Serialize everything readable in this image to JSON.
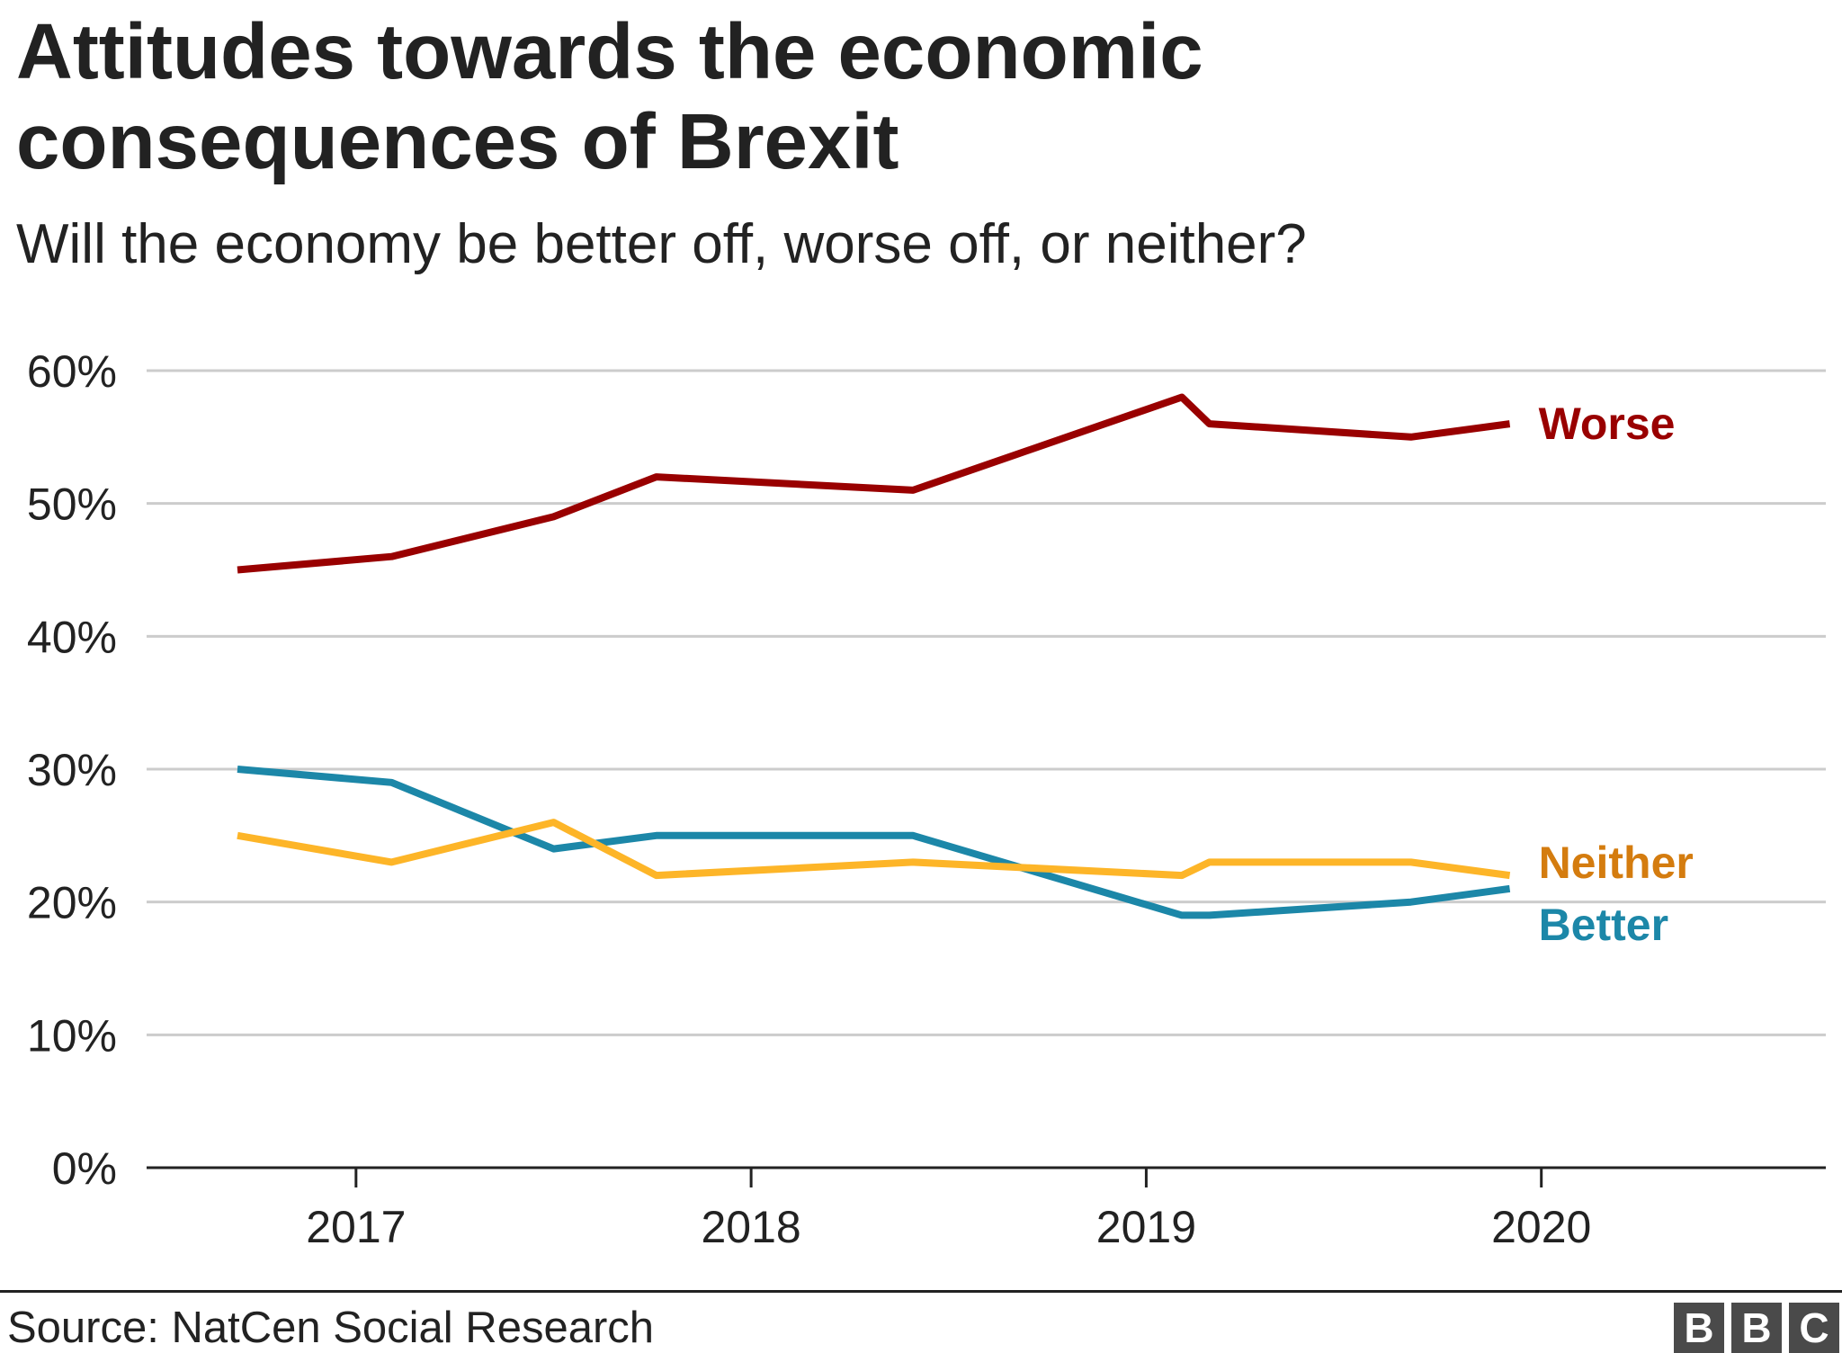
{
  "title": "Attitudes towards the economic consequences of Brexit",
  "subtitle": "Will the economy be better off, worse off, or neither?",
  "source": "Source: NatCen Social Research",
  "logo": {
    "letters": [
      "B",
      "B",
      "C"
    ],
    "color": "#4a4a4a"
  },
  "chart_data": {
    "type": "line",
    "title": "Attitudes towards the economic consequences of Brexit",
    "subtitle": "Will the economy be better off, worse off, or neither?",
    "xlabel": "",
    "ylabel": "",
    "xlim": [
      2016.47,
      2020.72
    ],
    "ylim": [
      0,
      60
    ],
    "xticks": [
      2017,
      2018,
      2019,
      2020
    ],
    "xtick_labels": [
      "2017",
      "2018",
      "2019",
      "2020"
    ],
    "yticks": [
      0,
      10,
      20,
      30,
      40,
      50,
      60
    ],
    "ytick_labels": [
      "0%",
      "10%",
      "20%",
      "30%",
      "40%",
      "50%",
      "60%"
    ],
    "grid": true,
    "legend": "direct labels at line ends (right)",
    "series": [
      {
        "name": "Worse",
        "color": "#990000",
        "label_color": "#990000",
        "x": [
          2016.7,
          2017.09,
          2017.5,
          2017.76,
          2018.41,
          2019.09,
          2019.16,
          2019.67,
          2019.92
        ],
        "values": [
          45,
          46,
          49,
          52,
          51,
          58,
          56,
          55,
          56
        ]
      },
      {
        "name": "Neither",
        "color": "#fdb528",
        "label_color": "#d47c0f",
        "x": [
          2016.7,
          2017.09,
          2017.5,
          2017.76,
          2018.41,
          2019.09,
          2019.16,
          2019.67,
          2019.92
        ],
        "values": [
          25,
          23,
          26,
          22,
          23,
          22,
          23,
          23,
          22
        ]
      },
      {
        "name": "Better",
        "color": "#1c87a8",
        "label_color": "#1c87a8",
        "x": [
          2016.7,
          2017.09,
          2017.5,
          2017.76,
          2018.41,
          2019.09,
          2019.16,
          2019.67,
          2019.92
        ],
        "values": [
          30,
          29,
          24,
          25,
          25,
          19,
          19,
          20,
          21
        ]
      }
    ]
  }
}
